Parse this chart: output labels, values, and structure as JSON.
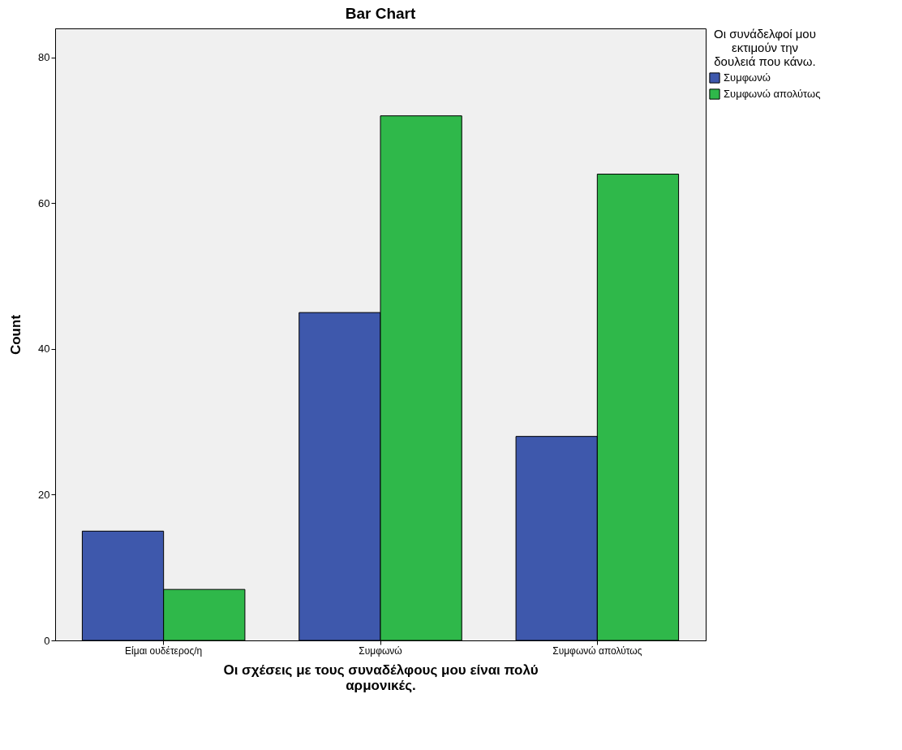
{
  "chart_data": {
    "type": "bar",
    "title": "Bar Chart",
    "xlabel": "Οι σχέσεις με τους συναδέλφους μου είναι πολύ αρμονικές.",
    "ylabel": "Count",
    "legend_title": "Οι συνάδελφοί μου εκτιμούν την δουλειά που κάνω.",
    "categories": [
      "Είμαι ουδέτερος/η",
      "Συμφωνώ",
      "Συμφωνώ απολύτως"
    ],
    "series": [
      {
        "name": "Συμφωνώ",
        "color": "#3e58ac",
        "values": [
          15,
          45,
          28
        ]
      },
      {
        "name": "Συμφωνώ απολύτως",
        "color": "#2fb84a",
        "values": [
          7,
          72,
          64
        ]
      }
    ],
    "ylim": [
      0,
      84
    ],
    "yticks": [
      0,
      20,
      40,
      60,
      80
    ],
    "grid": false,
    "legend": "top right"
  }
}
